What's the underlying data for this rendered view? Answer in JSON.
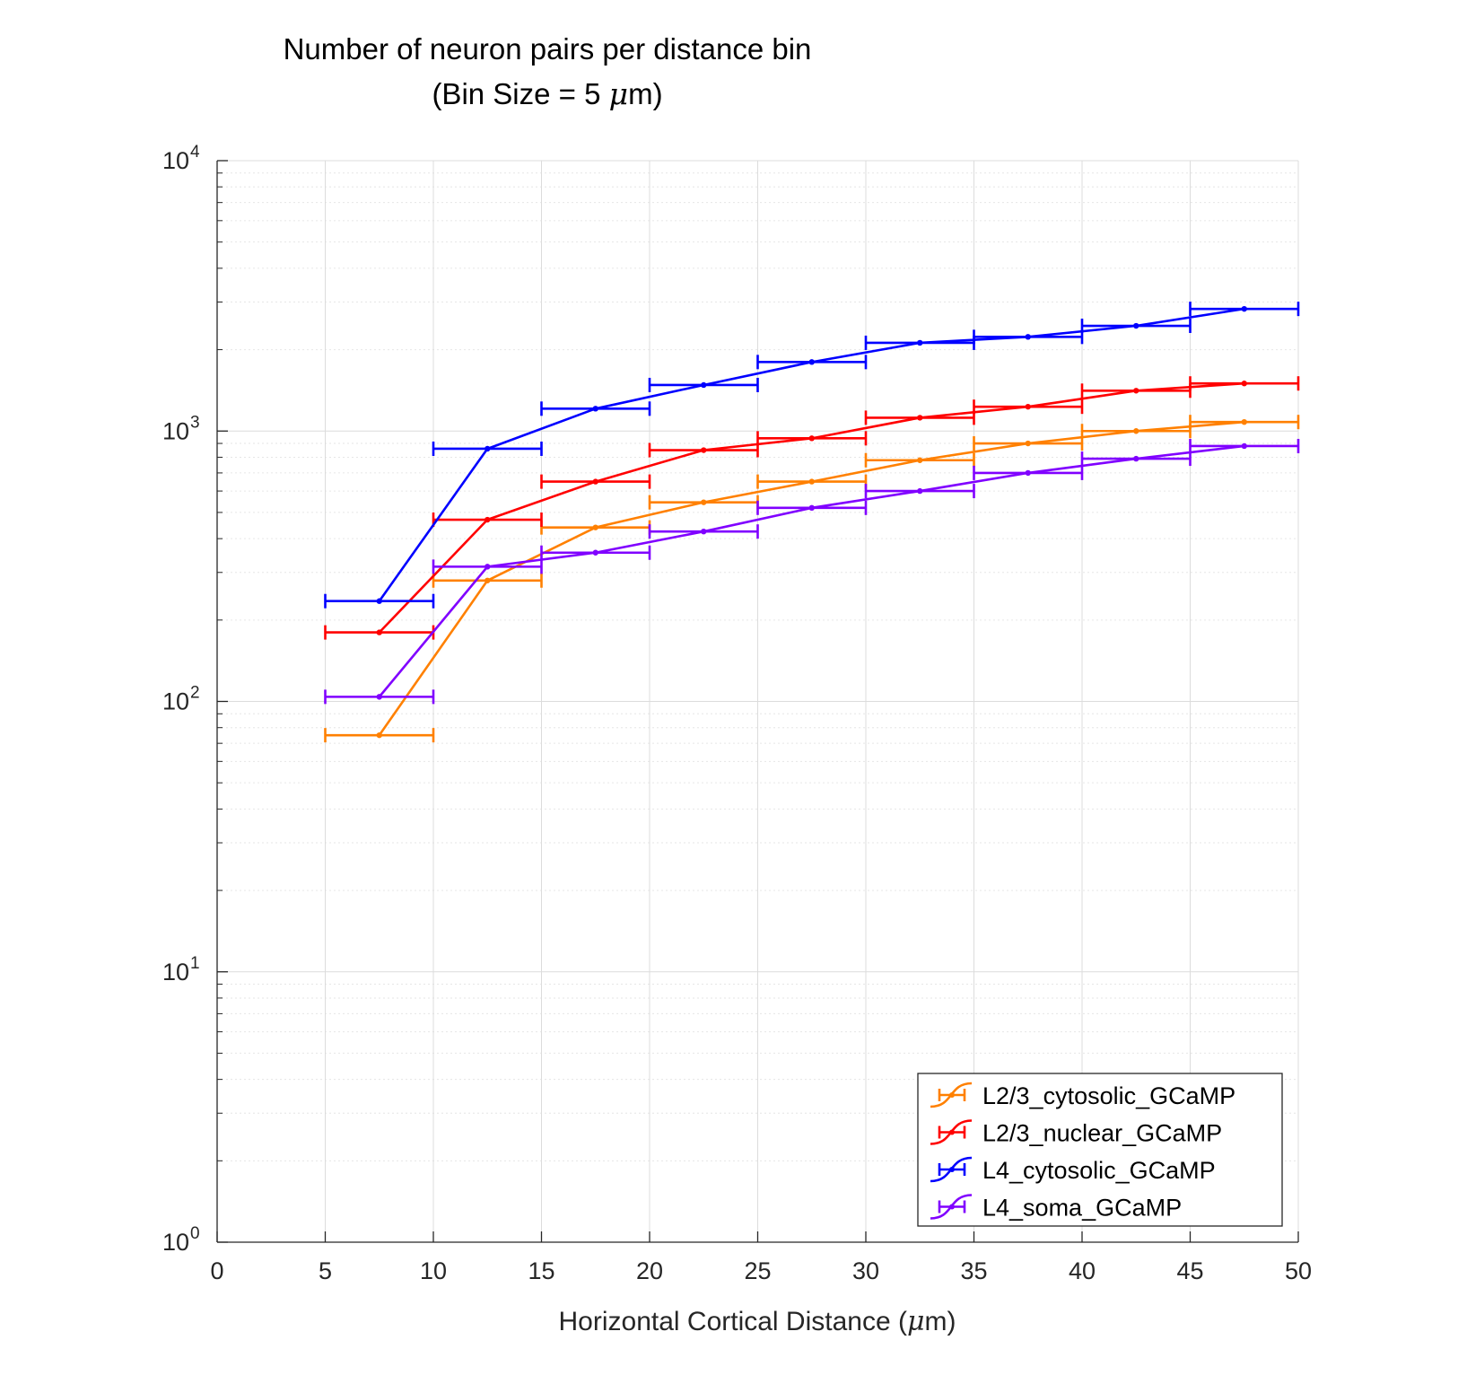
{
  "chart_data": {
    "type": "line",
    "title_line1": "Number of neuron pairs per distance bin",
    "title_line2_prefix": "(Bin Size = 5 ",
    "title_line2_mu": "μ",
    "title_line2_suffix": "m)",
    "xlabel_prefix": "Horizontal Cortical Distance (",
    "xlabel_mu": "μ",
    "xlabel_suffix": "m)",
    "ylabel": "",
    "xlim": [
      0,
      50
    ],
    "ylim": [
      1,
      10000
    ],
    "yscale": "log",
    "grid": true,
    "minor_grid": true,
    "legend_position": "bottom-right",
    "x_ticks": [
      0,
      5,
      10,
      15,
      20,
      25,
      30,
      35,
      40,
      45,
      50
    ],
    "x_tick_labels": [
      "0",
      "5",
      "10",
      "15",
      "20",
      "25",
      "30",
      "35",
      "40",
      "45",
      "50"
    ],
    "y_ticks": [
      1,
      10,
      100,
      1000,
      10000
    ],
    "y_tick_bases": [
      "10",
      "10",
      "10",
      "10",
      "10"
    ],
    "y_tick_exponents": [
      "0",
      "1",
      "2",
      "3",
      "4"
    ],
    "bin_half_width": 2.5,
    "x": [
      7.5,
      12.5,
      17.5,
      22.5,
      27.5,
      32.5,
      37.5,
      42.5,
      47.5
    ],
    "series": [
      {
        "name": "L2/3_cytosolic_GCaMP",
        "color": "#ff8000",
        "values": [
          75,
          280,
          440,
          545,
          650,
          780,
          900,
          1000,
          1080
        ]
      },
      {
        "name": "L2/3_nuclear_GCaMP",
        "color": "#ff0000",
        "values": [
          180,
          470,
          650,
          850,
          940,
          1120,
          1230,
          1410,
          1500
        ]
      },
      {
        "name": "L4_cytosolic_GCaMP",
        "color": "#0000ff",
        "values": [
          235,
          860,
          1210,
          1480,
          1800,
          2120,
          2230,
          2450,
          2830
        ]
      },
      {
        "name": "L4_soma_GCaMP",
        "color": "#8000ff",
        "values": [
          104,
          315,
          355,
          425,
          520,
          600,
          700,
          790,
          880
        ]
      }
    ]
  }
}
